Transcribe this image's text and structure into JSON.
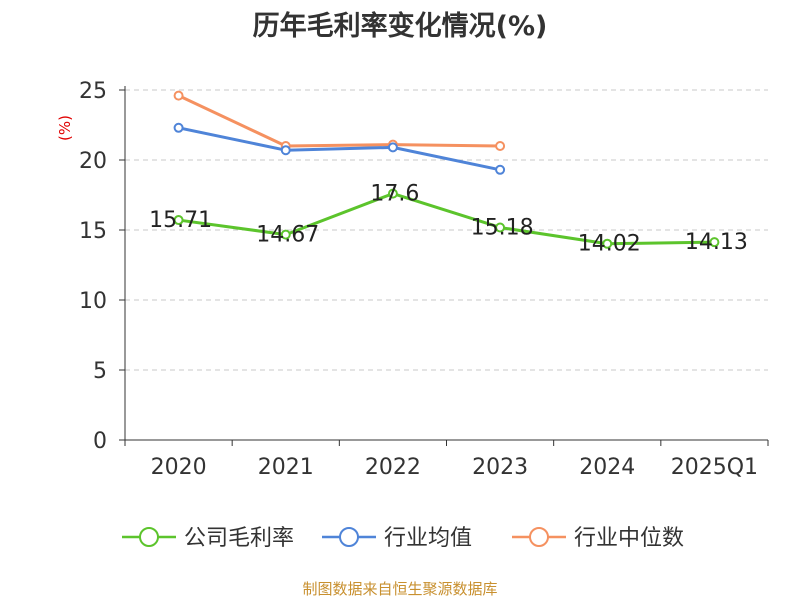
{
  "chart_data": {
    "type": "line",
    "title": "历年毛利率变化情况(%)",
    "ylabel": "(%)",
    "xlabel": "",
    "ylim": [
      0,
      25
    ],
    "yticks": [
      0,
      5,
      10,
      15,
      20,
      25
    ],
    "grid": true,
    "legend_position": "bottom",
    "categories": [
      "2020",
      "2021",
      "2022",
      "2023",
      "2024",
      "2025Q1"
    ],
    "series": [
      {
        "name": "公司毛利率",
        "color": "#5cc42c",
        "values": [
          15.71,
          14.67,
          17.6,
          15.18,
          14.02,
          14.13
        ],
        "labels": [
          "15.71",
          "14.67",
          "17.6",
          "15.18",
          "14.02",
          "14.13"
        ]
      },
      {
        "name": "行业均值",
        "color": "#4f84d8",
        "values": [
          22.3,
          20.7,
          20.9,
          19.3,
          null,
          null
        ]
      },
      {
        "name": "行业中位数",
        "color": "#f59160",
        "values": [
          24.6,
          21.0,
          21.1,
          21.0,
          null,
          null
        ]
      }
    ]
  },
  "source": "制图数据来自恒生聚源数据库"
}
